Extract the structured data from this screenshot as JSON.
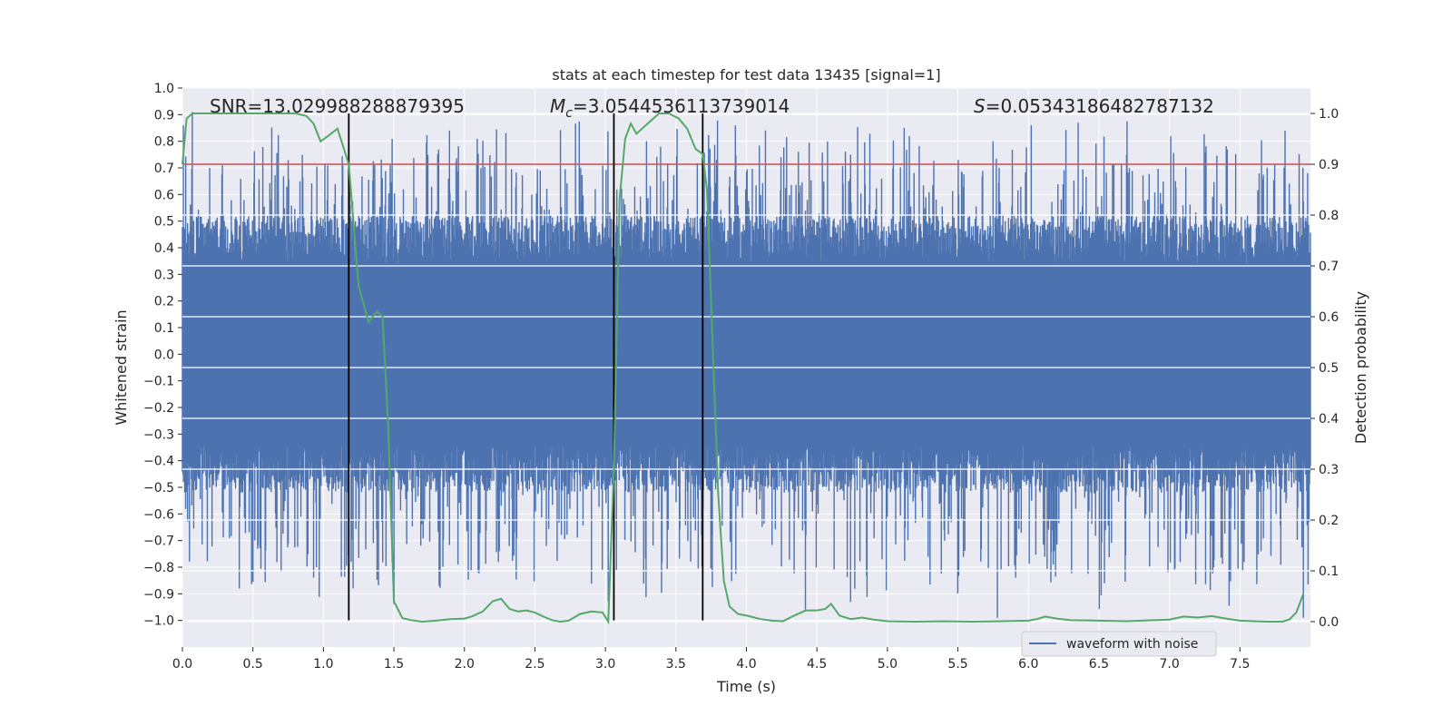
{
  "chart_data": {
    "type": "line",
    "title": "stats at each timestep for test data 13435 [signal=1]",
    "xlabel": "Time (s)",
    "ylabel_left": "Whitened strain",
    "ylabel_right": "Detection probability",
    "xlim": [
      0.0,
      8.0
    ],
    "ylim_left": [
      -1.1,
      1.0
    ],
    "ylim_right": [
      -0.05,
      1.05
    ],
    "xticks": [
      "0.0",
      "0.5",
      "1.0",
      "1.5",
      "2.0",
      "2.5",
      "3.0",
      "3.5",
      "4.0",
      "4.5",
      "5.0",
      "5.5",
      "6.0",
      "6.5",
      "7.0",
      "7.5"
    ],
    "xtick_values": [
      0.0,
      0.5,
      1.0,
      1.5,
      2.0,
      2.5,
      3.0,
      3.5,
      4.0,
      4.5,
      5.0,
      5.5,
      6.0,
      6.5,
      7.0,
      7.5
    ],
    "yticks_left": [
      "1.0",
      "0.9",
      "0.8",
      "0.7",
      "0.6",
      "0.5",
      "0.4",
      "0.3",
      "0.2",
      "0.1",
      "0.0",
      "−0.1",
      "−0.2",
      "−0.3",
      "−0.4",
      "−0.5",
      "−0.6",
      "−0.7",
      "−0.8",
      "−0.9",
      "−1.0"
    ],
    "yticks_left_values": [
      1.0,
      0.9,
      0.8,
      0.7,
      0.6,
      0.5,
      0.4,
      0.3,
      0.2,
      0.1,
      0.0,
      -0.1,
      -0.2,
      -0.3,
      -0.4,
      -0.5,
      -0.6,
      -0.7,
      -0.8,
      -0.9,
      -1.0
    ],
    "yticks_right": [
      "1.0",
      "0.9",
      "0.8",
      "0.7",
      "0.6",
      "0.5",
      "0.4",
      "0.3",
      "0.2",
      "0.1",
      "0.0"
    ],
    "yticks_right_values": [
      1.0,
      0.9,
      0.8,
      0.7,
      0.6,
      0.5,
      0.4,
      0.3,
      0.2,
      0.1,
      0.0
    ],
    "annotations": {
      "snr": "SNR=13.029988288879395",
      "mc_symbol": "M",
      "mc_sub": "c",
      "mc_value": "=3.0544536113739014",
      "s_symbol": "S",
      "s_value": "=0.05343186482787132"
    },
    "legend": {
      "label": "waveform with noise",
      "location": "lower-right"
    },
    "threshold": {
      "value": 0.9,
      "axis": "right"
    },
    "vlines": [
      1.18,
      3.06,
      3.69
    ],
    "vline_ymin_left": -1.0,
    "vline_ymax_right": 1.0,
    "waveform": {
      "name": "waveform with noise",
      "duration_s": 8.0,
      "base_envelope": 0.34,
      "typical_spike_max": 0.8,
      "max_spike": 0.91,
      "min_spike": -0.99,
      "seed": 13435
    },
    "detection_probability": {
      "name": "detection probability",
      "t": [
        0.0,
        0.03,
        0.07,
        0.1,
        0.2,
        0.3,
        0.5,
        0.7,
        0.8,
        0.88,
        0.93,
        0.98,
        1.03,
        1.1,
        1.18,
        1.25,
        1.32,
        1.38,
        1.42,
        1.46,
        1.5,
        1.56,
        1.62,
        1.7,
        1.8,
        1.9,
        2.0,
        2.05,
        2.13,
        2.2,
        2.26,
        2.32,
        2.38,
        2.44,
        2.5,
        2.56,
        2.62,
        2.68,
        2.74,
        2.82,
        2.9,
        2.98,
        3.02,
        3.06,
        3.1,
        3.14,
        3.18,
        3.22,
        3.26,
        3.32,
        3.38,
        3.45,
        3.52,
        3.58,
        3.64,
        3.69,
        3.72,
        3.76,
        3.8,
        3.84,
        3.88,
        3.94,
        4.0,
        4.1,
        4.18,
        4.26,
        4.34,
        4.42,
        4.5,
        4.56,
        4.6,
        4.66,
        4.74,
        4.82,
        4.9,
        5.0,
        5.2,
        5.4,
        5.6,
        5.8,
        6.0,
        6.06,
        6.12,
        6.2,
        6.3,
        6.5,
        6.7,
        6.9,
        7.0,
        7.1,
        7.2,
        7.3,
        7.4,
        7.5,
        7.6,
        7.7,
        7.8,
        7.85,
        7.9,
        7.95
      ],
      "p": [
        0.9,
        0.99,
        1.0,
        1.0,
        1.0,
        1.0,
        1.0,
        1.0,
        1.0,
        0.995,
        0.98,
        0.945,
        0.955,
        0.97,
        0.9,
        0.66,
        0.59,
        0.61,
        0.6,
        0.38,
        0.04,
        0.007,
        0.003,
        0.0,
        0.002,
        0.005,
        0.006,
        0.01,
        0.02,
        0.04,
        0.045,
        0.025,
        0.02,
        0.022,
        0.018,
        0.01,
        0.003,
        0.0,
        0.002,
        0.015,
        0.02,
        0.018,
        0.0,
        0.3,
        0.83,
        0.95,
        0.98,
        0.96,
        0.97,
        0.985,
        1.0,
        1.0,
        0.99,
        0.97,
        0.93,
        0.92,
        0.85,
        0.55,
        0.25,
        0.08,
        0.03,
        0.015,
        0.012,
        0.005,
        0.002,
        0.001,
        0.012,
        0.022,
        0.022,
        0.025,
        0.035,
        0.012,
        0.005,
        0.008,
        0.004,
        0.001,
        0.0,
        0.001,
        0.0,
        0.001,
        0.002,
        0.005,
        0.01,
        0.006,
        0.003,
        0.002,
        0.001,
        0.003,
        0.004,
        0.01,
        0.008,
        0.011,
        0.006,
        0.002,
        0.001,
        0.0,
        0.0,
        0.004,
        0.018,
        0.055
      ]
    },
    "colors": {
      "plot_bg": "#eaeaf2",
      "grid": "#ffffff",
      "waveform": "#4c72b0",
      "probability": "#55a868",
      "threshold": "#c44e52",
      "vline": "#000000",
      "legend_bg": "#eaeaf2",
      "legend_border": "#cccccc"
    }
  }
}
